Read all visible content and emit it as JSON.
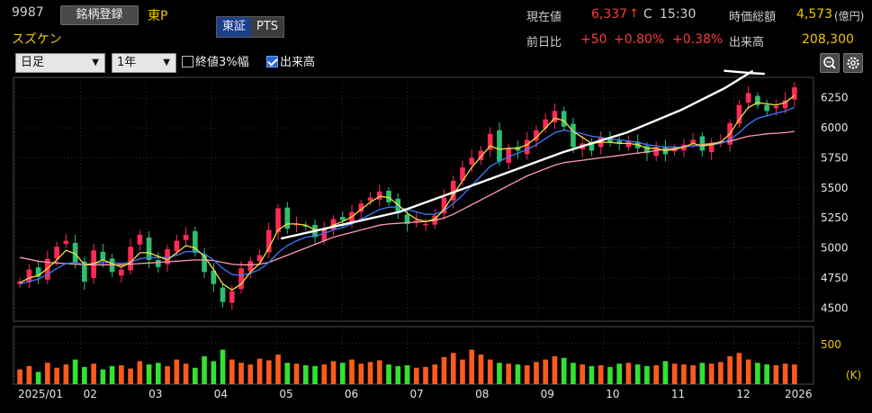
{
  "header": {
    "code": "9987",
    "register_label": "銘柄登録",
    "market": "東P",
    "name": "スズケン",
    "exchange_tabs": [
      "東証",
      "PTS"
    ],
    "price_label": "現在値",
    "price": "6,337",
    "price_arrow": "↑",
    "price_flag": "C",
    "price_time": "15:30",
    "mcap_label": "時価総額",
    "mcap_value": "4,573",
    "mcap_unit": "(億円)",
    "change_label": "前日比",
    "change": "+50",
    "change_pct": "+0.80%",
    "change_pct2": "+0.38%",
    "volume_label": "出来高",
    "volume_value": "208,300"
  },
  "toolbar": {
    "period": "日足",
    "range": "1年",
    "opt_close3": "終値3%幅",
    "opt_volume": "出来高",
    "opt_close3_checked": false,
    "opt_volume_checked": true
  },
  "colors": {
    "up": "#ff2a55",
    "down": "#2fbf71",
    "ma_short": "#f0e040",
    "ma_mid": "#3a7bff",
    "ma_long": "#ff9ab0",
    "vol_up": "#ff5a1e",
    "vol_down": "#33e033",
    "trend": "#ffffff"
  },
  "chart_data": {
    "type": "candlestick",
    "price_ticks": [
      4500,
      4750,
      5000,
      5250,
      5500,
      5750,
      6000,
      6250
    ],
    "ylim": [
      4390,
      6420
    ],
    "volume_tick": "500",
    "volume_unit": "(K)",
    "volume_max": 700,
    "x_labels": [
      "2025/01",
      "02",
      "03",
      "04",
      "05",
      "06",
      "07",
      "08",
      "09",
      "10",
      "11",
      "12",
      "2026"
    ],
    "closes": [
      4720,
      4820,
      4760,
      4910,
      5010,
      5060,
      4880,
      4720,
      4980,
      4900,
      4800,
      4820,
      5010,
      5110,
      4900,
      4840,
      4990,
      5060,
      5110,
      4960,
      4800,
      4700,
      4550,
      4640,
      4830,
      4890,
      4940,
      5150,
      5330,
      5160,
      5200,
      5180,
      5090,
      5160,
      5240,
      5230,
      5300,
      5370,
      5420,
      5470,
      5380,
      5290,
      5200,
      5230,
      5200,
      5270,
      5420,
      5560,
      5670,
      5750,
      5810,
      5950,
      5720,
      5830,
      5810,
      5900,
      5980,
      6070,
      6140,
      6010,
      5840,
      5870,
      5810,
      5920,
      5880,
      5870,
      5890,
      5830,
      5790,
      5840,
      5780,
      5830,
      5860,
      5900,
      5810,
      5870,
      5890,
      6040,
      6190,
      6290,
      6190,
      6140,
      6180,
      6230,
      6337
    ],
    "ma_short": [
      4710,
      4750,
      4770,
      4830,
      4900,
      4980,
      4950,
      4860,
      4870,
      4900,
      4870,
      4840,
      4880,
      4960,
      4960,
      4930,
      4900,
      4960,
      5020,
      5000,
      4930,
      4820,
      4700,
      4650,
      4700,
      4800,
      4870,
      5000,
      5150,
      5200,
      5200,
      5190,
      5150,
      5150,
      5190,
      5220,
      5260,
      5320,
      5380,
      5430,
      5420,
      5360,
      5290,
      5240,
      5220,
      5240,
      5320,
      5440,
      5560,
      5670,
      5760,
      5850,
      5820,
      5830,
      5830,
      5860,
      5920,
      6000,
      6080,
      6060,
      5970,
      5920,
      5870,
      5880,
      5880,
      5870,
      5870,
      5860,
      5830,
      5830,
      5810,
      5820,
      5840,
      5870,
      5850,
      5860,
      5880,
      5950,
      6070,
      6170,
      6210,
      6200,
      6190,
      6210,
      6270
    ],
    "ma_mid": [
      4700,
      4720,
      4740,
      4780,
      4830,
      4870,
      4880,
      4860,
      4870,
      4880,
      4880,
      4870,
      4880,
      4910,
      4920,
      4920,
      4920,
      4940,
      4970,
      4970,
      4950,
      4900,
      4830,
      4780,
      4770,
      4790,
      4820,
      4880,
      4960,
      5020,
      5060,
      5090,
      5100,
      5120,
      5150,
      5170,
      5200,
      5240,
      5280,
      5320,
      5340,
      5340,
      5320,
      5300,
      5280,
      5280,
      5310,
      5370,
      5440,
      5520,
      5600,
      5680,
      5720,
      5760,
      5790,
      5820,
      5860,
      5910,
      5960,
      5980,
      5970,
      5950,
      5930,
      5920,
      5910,
      5900,
      5890,
      5880,
      5860,
      5850,
      5840,
      5840,
      5840,
      5850,
      5850,
      5860,
      5870,
      5900,
      5960,
      6030,
      6080,
      6100,
      6120,
      6140,
      6170
    ],
    "ma_long": [
      4920,
      4905,
      4890,
      4880,
      4875,
      4870,
      4865,
      4860,
      4860,
      4860,
      4860,
      4860,
      4865,
      4870,
      4875,
      4880,
      4885,
      4890,
      4895,
      4900,
      4900,
      4895,
      4880,
      4865,
      4860,
      4860,
      4865,
      4880,
      4910,
      4940,
      4970,
      5000,
      5030,
      5060,
      5090,
      5110,
      5130,
      5150,
      5170,
      5190,
      5200,
      5205,
      5210,
      5215,
      5220,
      5230,
      5250,
      5280,
      5320,
      5360,
      5400,
      5440,
      5480,
      5520,
      5560,
      5600,
      5630,
      5660,
      5690,
      5710,
      5720,
      5730,
      5740,
      5750,
      5760,
      5770,
      5780,
      5790,
      5800,
      5810,
      5820,
      5830,
      5840,
      5850,
      5860,
      5870,
      5880,
      5890,
      5910,
      5930,
      5940,
      5950,
      5955,
      5960,
      5970
    ],
    "volume": [
      180,
      220,
      150,
      260,
      200,
      240,
      300,
      210,
      250,
      180,
      220,
      230,
      190,
      280,
      240,
      260,
      220,
      300,
      250,
      200,
      340,
      280,
      420,
      300,
      260,
      240,
      310,
      290,
      360,
      260,
      250,
      230,
      220,
      240,
      280,
      260,
      300,
      250,
      270,
      290,
      240,
      220,
      230,
      200,
      210,
      240,
      330,
      380,
      300,
      420,
      360,
      300,
      260,
      250,
      240,
      230,
      270,
      300,
      340,
      320,
      260,
      240,
      220,
      230,
      210,
      250,
      260,
      240,
      220,
      230,
      280,
      250,
      240,
      230,
      260,
      250,
      270,
      340,
      380,
      300,
      260,
      240,
      230,
      250,
      240
    ],
    "trendline": [
      [
        0.34,
        5080
      ],
      [
        0.49,
        5300
      ],
      [
        0.6,
        5560
      ],
      [
        0.7,
        5800
      ],
      [
        0.78,
        5960
      ],
      [
        0.85,
        6150
      ],
      [
        0.905,
        6330
      ],
      [
        0.94,
        6470
      ]
    ],
    "tail": [
      [
        0.905,
        6475
      ],
      [
        0.94,
        6455
      ],
      [
        0.955,
        6450
      ]
    ]
  }
}
